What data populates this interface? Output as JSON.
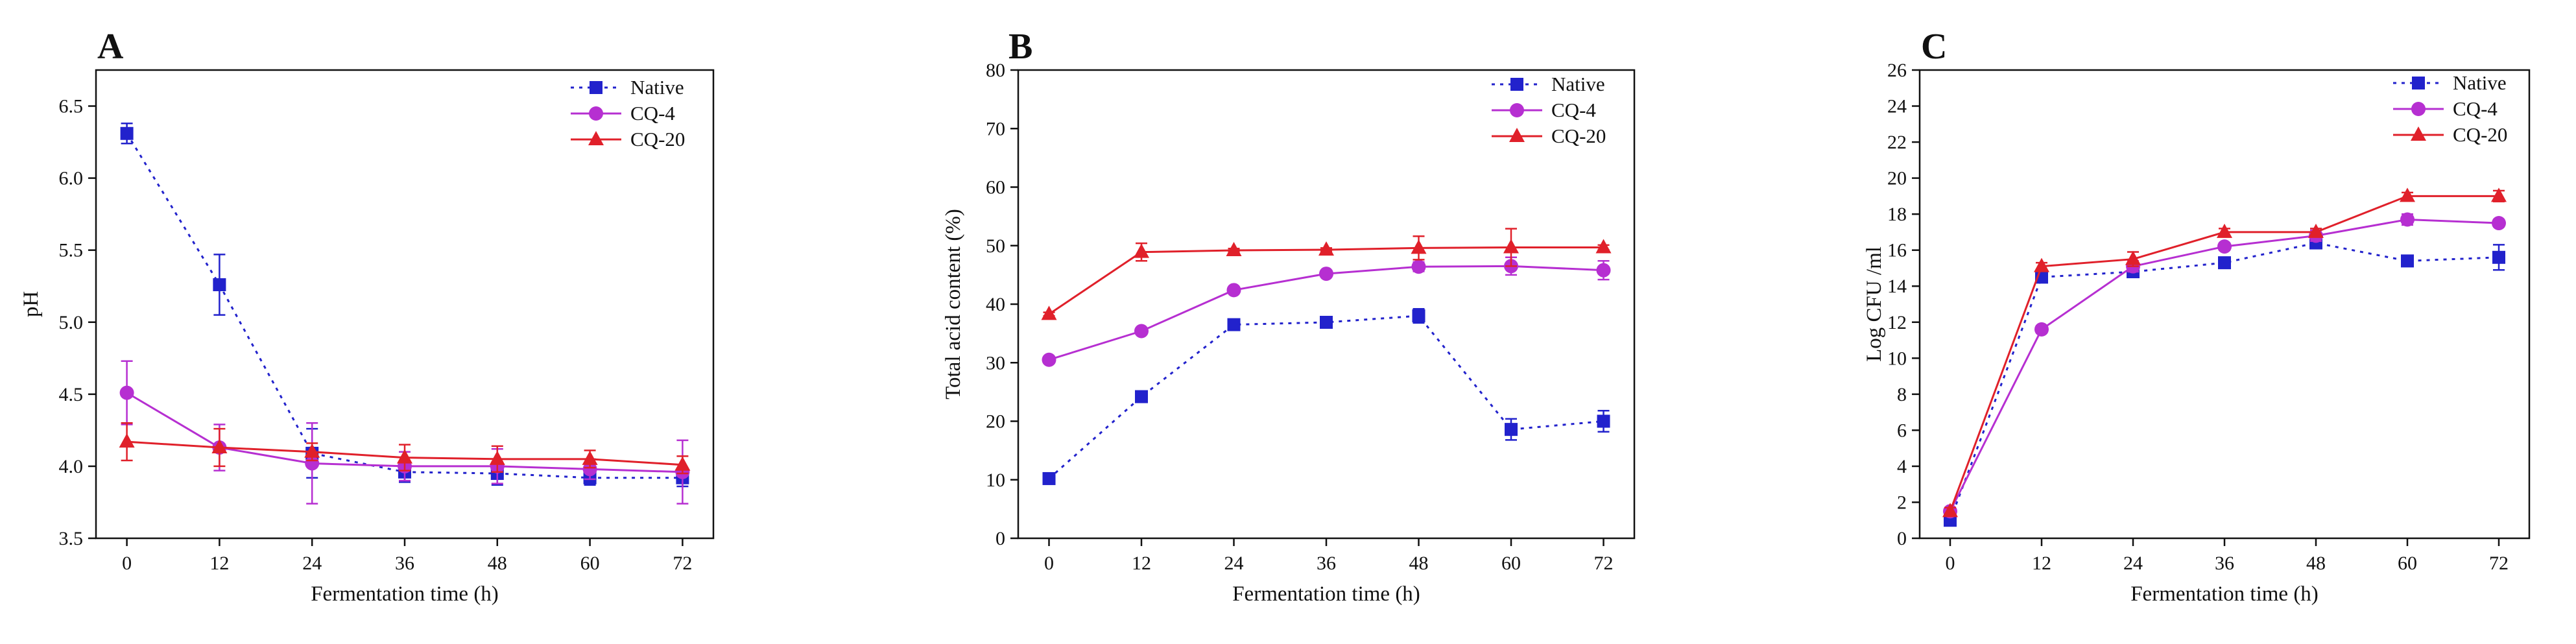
{
  "chart_data": [
    {
      "type": "line",
      "panel": "A",
      "xlabel": "Fermentation time (h)",
      "ylabel": "pH",
      "x": [
        0,
        12,
        24,
        36,
        48,
        60,
        72
      ],
      "xticks": [
        "0",
        "12",
        "24",
        "36",
        "48",
        "60",
        "72"
      ],
      "ylim": [
        3.5,
        6.75
      ],
      "yticks": [
        "3.5",
        "4.0",
        "4.5",
        "5.0",
        "5.5",
        "6.0",
        "6.5"
      ],
      "grid": false,
      "legend_position": "top-right",
      "series": [
        {
          "name": "Native",
          "color": "#2222cc",
          "marker": "square",
          "dash": true,
          "values": [
            6.31,
            5.26,
            4.09,
            3.96,
            3.95,
            3.92,
            3.92
          ],
          "errors": [
            0.07,
            0.21,
            0.17,
            0.07,
            0.08,
            0.05,
            0.06
          ]
        },
        {
          "name": "CQ-4",
          "color": "#b62fd1",
          "marker": "circle",
          "dash": false,
          "values": [
            4.51,
            4.13,
            4.02,
            4.0,
            4.0,
            3.98,
            3.96
          ],
          "errors": [
            0.22,
            0.16,
            0.28,
            0.1,
            0.12,
            0.07,
            0.22
          ]
        },
        {
          "name": "CQ-20",
          "color": "#e0202a",
          "marker": "triangle",
          "dash": false,
          "values": [
            4.17,
            4.13,
            4.1,
            4.06,
            4.05,
            4.05,
            4.01
          ],
          "errors": [
            0.13,
            0.13,
            0.06,
            0.09,
            0.09,
            0.06,
            0.06
          ]
        }
      ]
    },
    {
      "type": "line",
      "panel": "B",
      "xlabel": "Fermentation time (h)",
      "ylabel": "Total acid content (%)",
      "x": [
        0,
        12,
        24,
        36,
        48,
        60,
        72
      ],
      "xticks": [
        "0",
        "12",
        "24",
        "36",
        "48",
        "60",
        "72"
      ],
      "ylim": [
        0,
        80
      ],
      "yticks": [
        "0",
        "10",
        "20",
        "30",
        "40",
        "50",
        "60",
        "70",
        "80"
      ],
      "grid": false,
      "legend_position": "top-right",
      "series": [
        {
          "name": "Native",
          "color": "#2222cc",
          "marker": "square",
          "dash": true,
          "values": [
            10.2,
            24.2,
            36.5,
            36.9,
            38.0,
            18.6,
            20.0
          ],
          "errors": [
            0.3,
            0.5,
            0.5,
            0.4,
            1.2,
            1.8,
            1.8
          ]
        },
        {
          "name": "CQ-4",
          "color": "#b62fd1",
          "marker": "circle",
          "dash": false,
          "values": [
            30.5,
            35.4,
            42.4,
            45.2,
            46.4,
            46.5,
            45.8
          ],
          "errors": [
            0.3,
            0.3,
            0.4,
            0.4,
            0.8,
            1.5,
            1.6
          ]
        },
        {
          "name": "CQ-20",
          "color": "#e0202a",
          "marker": "triangle",
          "dash": false,
          "values": [
            38.3,
            48.9,
            49.2,
            49.3,
            49.6,
            49.7,
            49.7
          ],
          "errors": [
            0.3,
            1.5,
            0.3,
            0.3,
            2.0,
            3.2,
            0.4
          ]
        }
      ]
    },
    {
      "type": "line",
      "panel": "C",
      "xlabel": "Fermentation time (h)",
      "ylabel": "Log CFU /ml",
      "x": [
        0,
        12,
        24,
        36,
        48,
        60,
        72
      ],
      "xticks": [
        "0",
        "12",
        "24",
        "36",
        "48",
        "60",
        "72"
      ],
      "ylim": [
        0,
        26
      ],
      "yticks": [
        "0",
        "2",
        "4",
        "6",
        "8",
        "10",
        "12",
        "14",
        "16",
        "18",
        "20",
        "22",
        "24",
        "26"
      ],
      "grid": false,
      "legend_position": "top-right",
      "series": [
        {
          "name": "Native",
          "color": "#2222cc",
          "marker": "square",
          "dash": true,
          "values": [
            1.0,
            14.5,
            14.8,
            15.3,
            16.4,
            15.4,
            15.6
          ],
          "errors": [
            0.2,
            0.3,
            0.3,
            0.2,
            0.3,
            0.2,
            0.7
          ]
        },
        {
          "name": "CQ-4",
          "color": "#b62fd1",
          "marker": "circle",
          "dash": false,
          "values": [
            1.5,
            11.6,
            15.1,
            16.2,
            16.8,
            17.7,
            17.5
          ],
          "errors": [
            0.2,
            0.2,
            0.3,
            0.2,
            0.3,
            0.3,
            0.2
          ]
        },
        {
          "name": "CQ-20",
          "color": "#e0202a",
          "marker": "triangle",
          "dash": false,
          "values": [
            1.5,
            15.1,
            15.5,
            17.0,
            17.0,
            19.0,
            19.0
          ],
          "errors": [
            0.2,
            0.2,
            0.4,
            0.2,
            0.2,
            0.2,
            0.3
          ]
        }
      ]
    }
  ]
}
